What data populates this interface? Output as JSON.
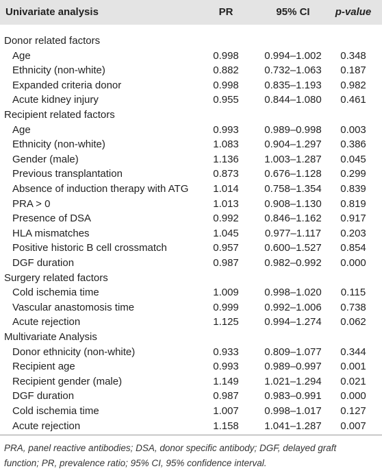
{
  "table": {
    "header": [
      "Univariate analysis",
      "PR",
      "95% CI",
      "p-value"
    ],
    "sections": [
      {
        "title": "Donor related factors",
        "rows": [
          [
            "Age",
            "0.998",
            "0.994–1.002",
            "0.348"
          ],
          [
            "Ethnicity (non-white)",
            "0.882",
            "0.732–1.063",
            "0.187"
          ],
          [
            "Expanded criteria donor",
            "0.998",
            "0.835–1.193",
            "0.982"
          ],
          [
            "Acute kidney injury",
            "0.955",
            "0.844–1.080",
            "0.461"
          ]
        ]
      },
      {
        "title": "Recipient related factors",
        "rows": [
          [
            "Age",
            "0.993",
            "0.989–0.998",
            "0.003"
          ],
          [
            "Ethnicity (non-white)",
            "1.083",
            "0.904–1.297",
            "0.386"
          ],
          [
            "Gender (male)",
            "1.136",
            "1.003–1.287",
            "0.045"
          ],
          [
            "Previous transplantation",
            "0.873",
            "0.676–1.128",
            "0.299"
          ],
          [
            "Absence of induction therapy with ATG",
            "1.014",
            "0.758–1.354",
            "0.839"
          ],
          [
            "PRA > 0",
            "1.013",
            "0.908–1.130",
            "0.819"
          ],
          [
            "Presence of DSA",
            "0.992",
            "0.846–1.162",
            "0.917"
          ],
          [
            "HLA mismatches",
            "1.045",
            "0.977–1.117",
            "0.203"
          ],
          [
            "Positive historic B cell crossmatch",
            "0.957",
            "0.600–1.527",
            "0.854"
          ],
          [
            "DGF duration",
            "0.987",
            "0.982–0.992",
            "0.000"
          ]
        ]
      },
      {
        "title": "Surgery related factors",
        "rows": [
          [
            "Cold ischemia time",
            "1.009",
            "0.998–1.020",
            "0.115"
          ],
          [
            "Vascular anastomosis time",
            "0.999",
            "0.992–1.006",
            "0.738"
          ],
          [
            "Acute rejection",
            "1.125",
            "0.994–1.274",
            "0.062"
          ]
        ]
      },
      {
        "title": "Multivariate Analysis",
        "rows": [
          [
            "Donor ethnicity (non-white)",
            "0.933",
            "0.809–1.077",
            "0.344"
          ],
          [
            "Recipient age",
            "0.993",
            "0.989–0.997",
            "0.001"
          ],
          [
            "Recipient gender (male)",
            "1.149",
            "1.021–1.294",
            "0.021"
          ],
          [
            "DGF duration",
            "0.987",
            "0.983–0.991",
            "0.000"
          ],
          [
            "Cold ischemia time",
            "1.007",
            "0.998–1.017",
            "0.127"
          ],
          [
            "Acute rejection",
            "1.158",
            "1.041–1.287",
            "0.007"
          ]
        ]
      }
    ],
    "footnote": "PRA, panel reactive antibodies; DSA, donor specific antibody; DGF, delayed graft function; PR, prevalence ratio; 95% CI, 95% confidence interval."
  }
}
